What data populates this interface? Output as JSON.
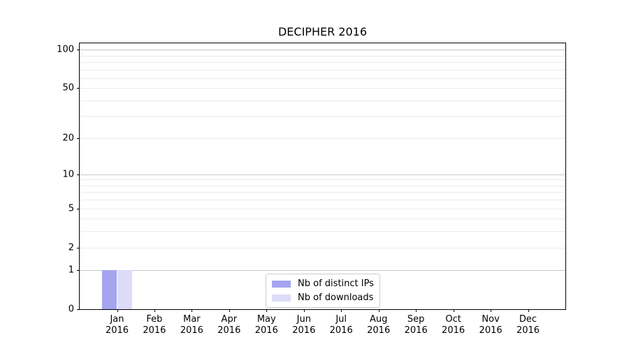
{
  "title": "DECIPHER 2016",
  "chart_data": {
    "type": "bar",
    "title": "DECIPHER 2016",
    "categories": [
      "Jan 2016",
      "Feb 2016",
      "Mar 2016",
      "Apr 2016",
      "May 2016",
      "Jun 2016",
      "Jul 2016",
      "Aug 2016",
      "Sep 2016",
      "Oct 2016",
      "Nov 2016",
      "Dec 2016"
    ],
    "series": [
      {
        "name": "Nb of distinct IPs",
        "color": "#a4a4f0",
        "values": [
          1,
          0,
          0,
          0,
          0,
          0,
          0,
          0,
          0,
          0,
          0,
          0
        ]
      },
      {
        "name": "Nb of downloads",
        "color": "#dcdcf8",
        "values": [
          1,
          0,
          0,
          0,
          0,
          0,
          0,
          0,
          0,
          0,
          0,
          0
        ]
      }
    ],
    "xlabel": "",
    "ylabel": "",
    "yscale": "log1p",
    "ylim": [
      0,
      112
    ],
    "yticks": [
      0,
      1,
      2,
      5,
      10,
      20,
      50,
      100
    ],
    "gridlines": {
      "major": [
        1,
        10,
        100
      ],
      "minor": [
        2,
        3,
        4,
        5,
        6,
        7,
        8,
        9,
        20,
        30,
        40,
        50,
        60,
        70,
        80,
        90
      ]
    },
    "colors": {
      "major_grid": "#c8c8c8",
      "minor_grid": "#ebebeb",
      "axis": "#000000",
      "background": "#ffffff"
    },
    "legend": {
      "position": "lower center",
      "entries": [
        "Nb of distinct IPs",
        "Nb of downloads"
      ]
    }
  }
}
